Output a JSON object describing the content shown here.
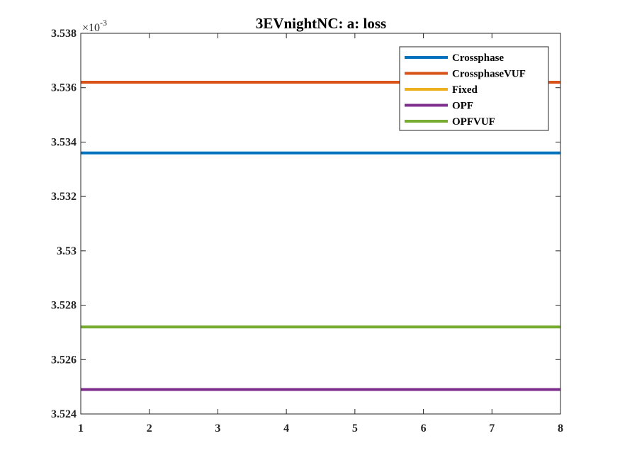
{
  "chart_data": {
    "type": "line",
    "title": "3EVnightNC: a: loss",
    "xlabel": "",
    "ylabel": "",
    "x": [
      1,
      2,
      3,
      4,
      5,
      6,
      7,
      8
    ],
    "xlim": [
      1,
      8
    ],
    "ylim": [
      3.524,
      3.538
    ],
    "xticks": [
      "1",
      "2",
      "3",
      "4",
      "5",
      "6",
      "7",
      "8"
    ],
    "yticks": [
      "3.524",
      "3.526",
      "3.528",
      "3.53",
      "3.532",
      "3.534",
      "3.536",
      "3.538"
    ],
    "y_scale_label": {
      "base": "×10",
      "exponent": "-3"
    },
    "grid": false,
    "legend_position": "top-right",
    "series": [
      {
        "name": "Crossphase",
        "color": "#0072BD",
        "values": [
          3.5336,
          3.5336,
          3.5336,
          3.5336,
          3.5336,
          3.5336,
          3.5336,
          3.5336
        ]
      },
      {
        "name": "CrossphaseVUF",
        "color": "#D95319",
        "values": [
          3.5362,
          3.5362,
          3.5362,
          3.5362,
          3.5362,
          3.5362,
          3.5362,
          3.5362
        ]
      },
      {
        "name": "Fixed",
        "color": "#EDB120",
        "values": [
          3.5249,
          3.5249,
          3.5249,
          3.5249,
          3.5249,
          3.5249,
          3.5249,
          3.5249
        ]
      },
      {
        "name": "OPF",
        "color": "#7E2F8E",
        "values": [
          3.5249,
          3.5249,
          3.5249,
          3.5249,
          3.5249,
          3.5249,
          3.5249,
          3.5249
        ]
      },
      {
        "name": "OPFVUF",
        "color": "#77AC30",
        "values": [
          3.5272,
          3.5272,
          3.5272,
          3.5272,
          3.5272,
          3.5272,
          3.5272,
          3.5272
        ]
      }
    ]
  }
}
